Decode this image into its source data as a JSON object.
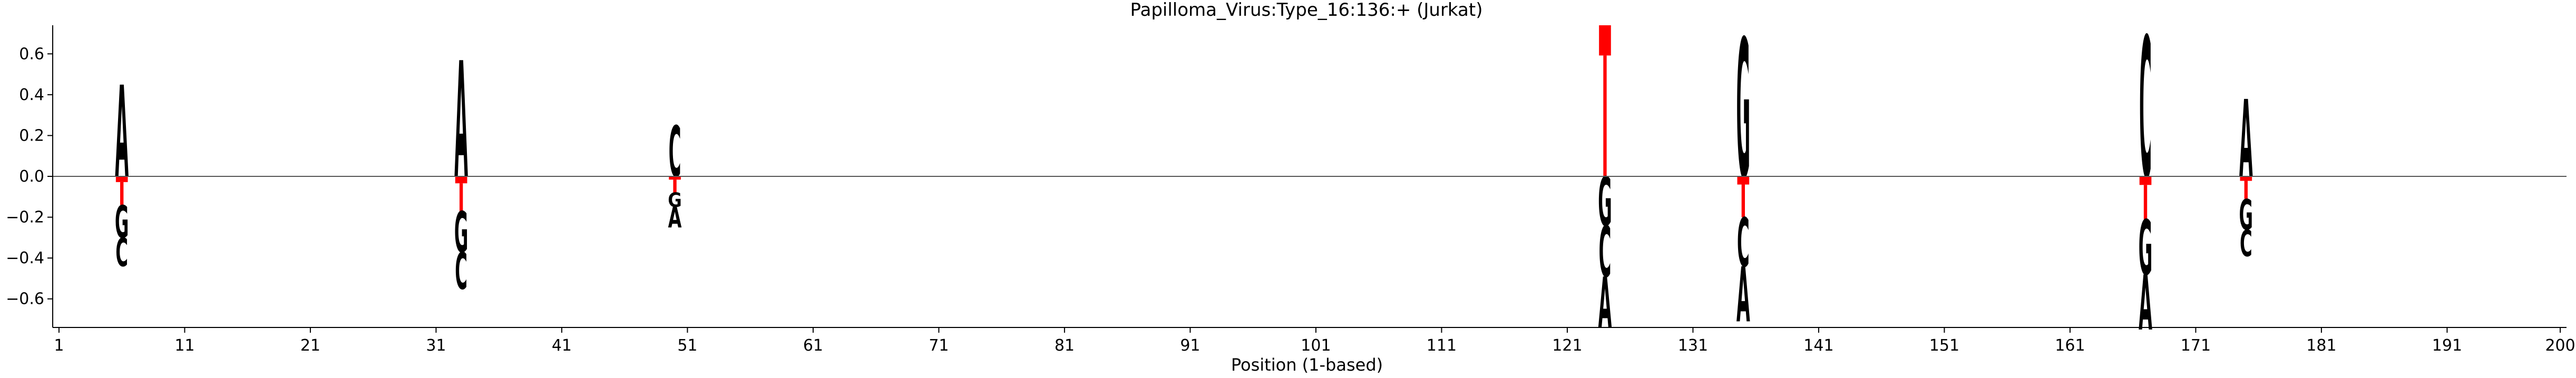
{
  "chart_data": {
    "type": "sequence-logo",
    "title": "Papilloma_Virus:Type_16:136:+  (Jurkat)",
    "xlabel": "Position (1-based)",
    "ylabel": "",
    "xlim": [
      0.5,
      200.5
    ],
    "ylim": [
      -0.74,
      0.74
    ],
    "x_ticks": [
      1,
      11,
      21,
      31,
      41,
      51,
      61,
      71,
      81,
      91,
      101,
      111,
      121,
      131,
      141,
      151,
      161,
      171,
      181,
      191,
      200
    ],
    "y_ticks": [
      -0.6,
      -0.4,
      -0.2,
      0.0,
      0.2,
      0.4,
      0.6
    ],
    "y_tick_labels": [
      "−0.6",
      "−0.4",
      "−0.2",
      "0.0",
      "0.2",
      "0.4",
      "0.6"
    ],
    "zero_line": true,
    "grid": false,
    "colors": {
      "A": "#008000",
      "C": "#0000ff",
      "G": "#ffa500",
      "T": "#ff0000",
      "axis": "#000000",
      "zero_line": "#555555"
    },
    "positions": [
      {
        "pos": 6,
        "letters": [
          {
            "base": "A",
            "value": 0.45
          },
          {
            "base": "T",
            "value": -0.14
          },
          {
            "base": "G",
            "value": -0.16
          },
          {
            "base": "C",
            "value": -0.14
          }
        ]
      },
      {
        "pos": 33,
        "letters": [
          {
            "base": "A",
            "value": 0.57
          },
          {
            "base": "T",
            "value": -0.17
          },
          {
            "base": "G",
            "value": -0.2
          },
          {
            "base": "C",
            "value": -0.18
          }
        ]
      },
      {
        "pos": 50,
        "letters": [
          {
            "base": "C",
            "value": 0.25
          },
          {
            "base": "T",
            "value": -0.08
          },
          {
            "base": "G",
            "value": -0.07
          },
          {
            "base": "A",
            "value": -0.1
          }
        ]
      },
      {
        "pos": 124,
        "letters": [
          {
            "base": "T",
            "value": 0.74
          },
          {
            "base": "G",
            "value": -0.24
          },
          {
            "base": "C",
            "value": -0.25
          },
          {
            "base": "A",
            "value": -0.25
          }
        ]
      },
      {
        "pos": 135,
        "letters": [
          {
            "base": "G",
            "value": 0.68
          },
          {
            "base": "T",
            "value": -0.2
          },
          {
            "base": "C",
            "value": -0.24
          },
          {
            "base": "A",
            "value": -0.27
          }
        ]
      },
      {
        "pos": 167,
        "letters": [
          {
            "base": "C",
            "value": 0.69
          },
          {
            "base": "T",
            "value": -0.21
          },
          {
            "base": "G",
            "value": -0.27
          },
          {
            "base": "A",
            "value": -0.27
          }
        ]
      },
      {
        "pos": 175,
        "letters": [
          {
            "base": "A",
            "value": 0.38
          },
          {
            "base": "T",
            "value": -0.11
          },
          {
            "base": "G",
            "value": -0.15
          },
          {
            "base": "C",
            "value": -0.13
          }
        ]
      }
    ]
  }
}
